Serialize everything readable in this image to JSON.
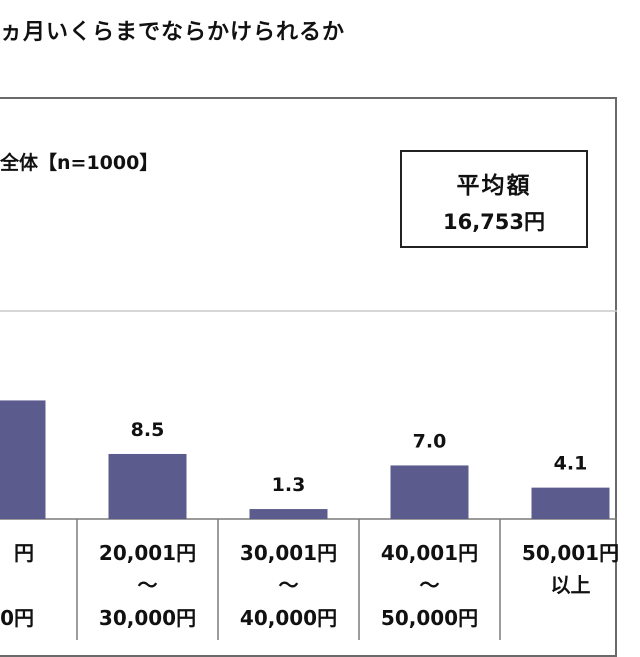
{
  "title": "ヵ月いくらまでならかけられるか",
  "subtitle": "全体【n=1000】",
  "average": {
    "label": "平均額",
    "value": "16,753円"
  },
  "colors": {
    "bar": "#5c5b8e",
    "grid": "#c8c8c8",
    "axis": "#7a7a7a"
  },
  "chart_data": {
    "type": "bar",
    "title": "",
    "xlabel": "",
    "ylabel": "",
    "ylim": [
      0,
      20
    ],
    "categories": [
      [
        "円",
        "",
        "0円"
      ],
      [
        "20,001円",
        "～",
        "30,000円"
      ],
      [
        "30,001円",
        "～",
        "40,000円"
      ],
      [
        "40,001円",
        "～",
        "50,000円"
      ],
      [
        "50,001円",
        "以上",
        ""
      ]
    ],
    "values": [
      15.5,
      8.5,
      1.3,
      7.0,
      4.1
    ],
    "data_labels": [
      "",
      "8.5",
      "1.3",
      "7.0",
      "4.1"
    ]
  }
}
